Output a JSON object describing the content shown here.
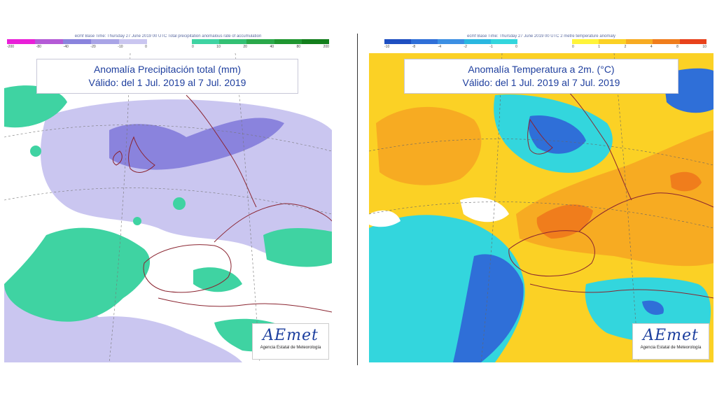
{
  "precip_panel": {
    "header": "ecmf  Base Time: Thursday 27 June 2019 00 UTC Total precipitation anomalous rate of accumulation",
    "title_line1": "Anomalía Precipitación total (mm)",
    "title_line2": "Válido: del 1 Jul. 2019 al 7 Jul. 2019",
    "scale_negative": {
      "ticks": [
        "-200",
        "-80",
        "-40",
        "-20",
        "-10",
        "0"
      ],
      "colors": [
        "#e91fd8",
        "#b45ad6",
        "#8a83dd",
        "#a9a4e6",
        "#cac6f0"
      ]
    },
    "scale_positive": {
      "ticks": [
        "0",
        "10",
        "20",
        "40",
        "80",
        "200"
      ],
      "colors": [
        "#3fd3a2",
        "#33c073",
        "#2aa84a",
        "#1f9630",
        "#137e1c"
      ]
    },
    "logo": {
      "word": "AEmet",
      "subtitle": "Agencia Estatal de Meteorología"
    }
  },
  "temp_panel": {
    "header": "ecmf  Base Time: Thursday 27 June 2019 00 UTC 2 metre temperature anomaly",
    "title_line1": "Anomalía Temperatura a 2m. (°C)",
    "title_line2": "Válido: del 1 Jul. 2019 al 7 Jul. 2019",
    "scale_negative": {
      "ticks": [
        "-10",
        "-8",
        "-4",
        "-2",
        "-1",
        "0"
      ],
      "colors": [
        "#1e4fc1",
        "#2f6fd8",
        "#3c8fe3",
        "#2ab7e0",
        "#33d6dd"
      ]
    },
    "scale_positive": {
      "ticks": [
        "0",
        "1",
        "2",
        "4",
        "8",
        "10"
      ],
      "colors": [
        "#fff43a",
        "#fbd125",
        "#f7ab22",
        "#f07d1c",
        "#e8421c"
      ]
    },
    "logo": {
      "word": "AEmet",
      "subtitle": "Agencia Estatal de Meteorología"
    }
  },
  "colors": {
    "precip_dry": "#cac6f0",
    "precip_dry_strong": "#8a83dd",
    "precip_wet": "#3fd3a2",
    "temp_warm": "#fbd125",
    "temp_warmer": "#f7ab22",
    "temp_hot": "#f07d1c",
    "temp_cool": "#33d6dd",
    "temp_cold": "#2f6fd8",
    "coastline": "#8a2430",
    "title_text": "#1f3f9e"
  }
}
